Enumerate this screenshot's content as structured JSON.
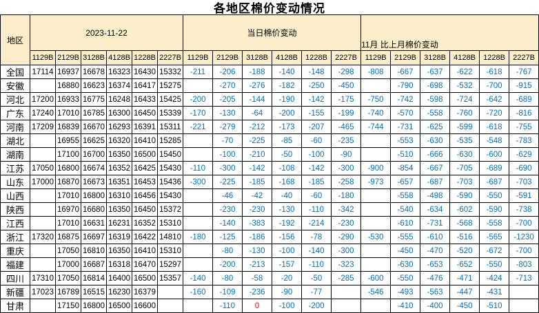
{
  "title": "各地区棉价变动情况",
  "colors": {
    "header_bg": "#FCEECA",
    "border": "#000000",
    "price_text": "#000000",
    "change_text": "#0070C0",
    "zero_text": "#FF0000"
  },
  "chart_data": {
    "type": "table",
    "title": "各地区棉价变动情况",
    "region_header": "地区",
    "groups": [
      {
        "label": "2023-11-22",
        "value_color": "#000000"
      },
      {
        "label": "当日棉价变动",
        "value_color": "#0070C0"
      },
      {
        "label": "11月 比上月棉价变动",
        "value_color": "#0070C0"
      }
    ],
    "grade_columns": [
      "1129B",
      "2129B",
      "3128B",
      "4128B",
      "1228B",
      "2227B"
    ],
    "rows": [
      {
        "region": "全国",
        "prices": [
          17114,
          16937,
          16678,
          16323,
          16430,
          15332
        ],
        "daily_change": [
          -211,
          -206,
          -188,
          -140,
          -148,
          -298
        ],
        "monthly_change": [
          -808,
          -667,
          -637,
          -622,
          -618,
          -767
        ]
      },
      {
        "region": "安徽",
        "prices": [
          "",
          16880,
          16623,
          16374,
          16417,
          15275
        ],
        "daily_change": [
          "",
          -270,
          -276,
          -182,
          -250,
          -450
        ],
        "monthly_change": [
          "",
          -790,
          -698,
          -532,
          -700,
          -915
        ]
      },
      {
        "region": "河北",
        "prices": [
          17200,
          16933,
          16775,
          16248,
          16433,
          15425
        ],
        "daily_change": [
          -200,
          -205,
          -144,
          -190,
          -142,
          -175
        ],
        "monthly_change": [
          -750,
          -742,
          -598,
          -724,
          -642,
          -689
        ]
      },
      {
        "region": "广东",
        "prices": [
          17240,
          17010,
          16785,
          16300,
          16450,
          15339
        ],
        "daily_change": [
          -170,
          -130,
          -64,
          -200,
          -155,
          -199
        ],
        "monthly_change": [
          -740,
          -570,
          -558,
          -760,
          -720,
          -816
        ]
      },
      {
        "region": "河南",
        "prices": [
          17209,
          16839,
          16670,
          16293,
          16391,
          15311
        ],
        "daily_change": [
          -221,
          -279,
          -212,
          -173,
          -207,
          -465
        ],
        "monthly_change": [
          -744,
          -731,
          -625,
          -599,
          -618,
          -755
        ]
      },
      {
        "region": "湖北",
        "prices": [
          "",
          16955,
          16625,
          16320,
          16410,
          15285
        ],
        "daily_change": [
          "",
          -70,
          -225,
          -85,
          -60,
          -235
        ],
        "monthly_change": [
          "",
          -553,
          -630,
          -535,
          -548,
          -783
        ]
      },
      {
        "region": "湖南",
        "prices": [
          "",
          17100,
          16700,
          16350,
          16500,
          15450
        ],
        "daily_change": [
          "",
          -100,
          -210,
          -50,
          -100,
          -90
        ],
        "monthly_change": [
          "",
          -510,
          -666,
          -630,
          -600,
          -629
        ]
      },
      {
        "region": "江苏",
        "prices": [
          17050,
          16800,
          16674,
          16352,
          16425,
          15430
        ],
        "daily_change": [
          -110,
          -300,
          -142,
          -108,
          -142,
          -300
        ],
        "monthly_change": [
          -900,
          -854,
          -667,
          -705,
          -689,
          -690
        ]
      },
      {
        "region": "山东",
        "prices": [
          17000,
          16870,
          16673,
          16351,
          16453,
          15436
        ],
        "daily_change": [
          -300,
          -225,
          -185,
          -168,
          -185,
          -258
        ],
        "monthly_change": [
          -973,
          -657,
          -687,
          -703,
          -687,
          -703
        ]
      },
      {
        "region": "山西",
        "prices": [
          "",
          17010,
          16800,
          16310,
          16456,
          15430
        ],
        "daily_change": [
          "",
          -46,
          -42,
          -40,
          -60,
          -180
        ],
        "monthly_change": [
          "",
          -558,
          -498,
          -590,
          -550,
          -591
        ]
      },
      {
        "region": "陕西",
        "prices": [
          "",
          16970,
          16680,
          16350,
          16450,
          15372
        ],
        "daily_change": [
          "",
          -230,
          -230,
          -130,
          -110,
          -342
        ],
        "monthly_change": [
          "",
          -540,
          -634,
          -602,
          -590,
          -738
        ]
      },
      {
        "region": "江西",
        "prices": [
          "",
          17010,
          16631,
          16231,
          16352,
          15310
        ],
        "daily_change": [
          "",
          -140,
          -383,
          -192,
          -214,
          -230
        ],
        "monthly_change": [
          "",
          -610,
          -731,
          -568,
          -558,
          -700
        ]
      },
      {
        "region": "浙江",
        "prices": [
          17320,
          16875,
          16697,
          16319,
          16422,
          14810
        ],
        "daily_change": [
          -180,
          -125,
          -186,
          -156,
          -78,
          -290
        ],
        "monthly_change": [
          -530,
          -555,
          -610,
          -516,
          -565,
          -1230
        ]
      },
      {
        "region": "重庆",
        "prices": [
          "",
          17050,
          16810,
          16350,
          16410,
          15310
        ],
        "daily_change": [
          "",
          -80,
          -130,
          -100,
          -140,
          -300
        ],
        "monthly_change": [
          "",
          -450,
          -470,
          -520,
          -672,
          -700
        ]
      },
      {
        "region": "福建",
        "prices": [
          "",
          17000,
          16687,
          16318,
          16470,
          15297
        ],
        "daily_change": [
          "",
          -200,
          -213,
          -157,
          -110,
          -323
        ],
        "monthly_change": [
          "",
          -630,
          -653,
          -652,
          -550,
          -803
        ]
      },
      {
        "region": "四川",
        "prices": [
          17310,
          17050,
          16814,
          16400,
          16500,
          15357
        ],
        "daily_change": [
          -140,
          -80,
          -58,
          -20,
          -50,
          -285
        ],
        "monthly_change": [
          -600,
          -550,
          -476,
          -471,
          -424,
          -713
        ]
      },
      {
        "region": "新疆",
        "prices": [
          17023,
          16789,
          16515,
          16230,
          16379,
          ""
        ],
        "daily_change": [
          -160,
          -109,
          -236,
          -90,
          -77,
          ""
        ],
        "monthly_change": [
          -546,
          -493,
          -563,
          -447,
          -431,
          ""
        ]
      },
      {
        "region": "甘肃",
        "prices": [
          "",
          17150,
          16800,
          16500,
          16600,
          ""
        ],
        "daily_change": [
          "",
          -110,
          0,
          -100,
          -200,
          ""
        ],
        "monthly_change": [
          "",
          -410,
          -400,
          -450,
          -510,
          ""
        ]
      }
    ]
  }
}
